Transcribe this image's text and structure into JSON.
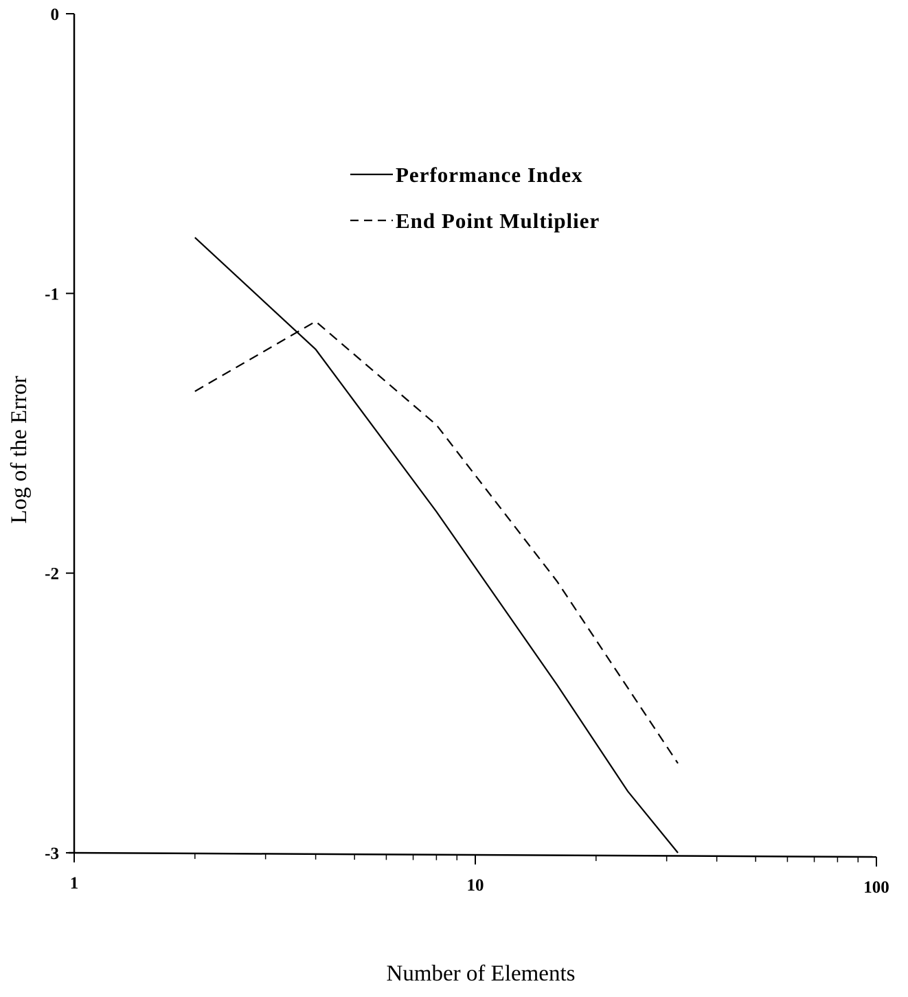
{
  "chart_data": {
    "type": "line",
    "xlabel": "Number of Elements",
    "ylabel": "Log of the Error",
    "x_scale": "log",
    "xlim": [
      1,
      100
    ],
    "ylim": [
      -3,
      0
    ],
    "x_tick_labels": [
      "1",
      "10",
      "100"
    ],
    "y_tick_labels": [
      "0",
      "-1",
      "-2",
      "-3"
    ],
    "grid": false,
    "legend_position": "top-center",
    "series": [
      {
        "name": "Performance Index",
        "style": "solid",
        "color": "#000000",
        "x": [
          2,
          4,
          8,
          16,
          24,
          32
        ],
        "y": [
          -0.8,
          -1.2,
          -1.78,
          -2.4,
          -2.78,
          -3.0
        ]
      },
      {
        "name": "End Point Multiplier",
        "style": "dashed",
        "color": "#000000",
        "x": [
          2,
          4,
          8,
          16,
          32
        ],
        "y": [
          -1.35,
          -1.1,
          -1.47,
          -2.03,
          -2.68
        ]
      }
    ]
  }
}
